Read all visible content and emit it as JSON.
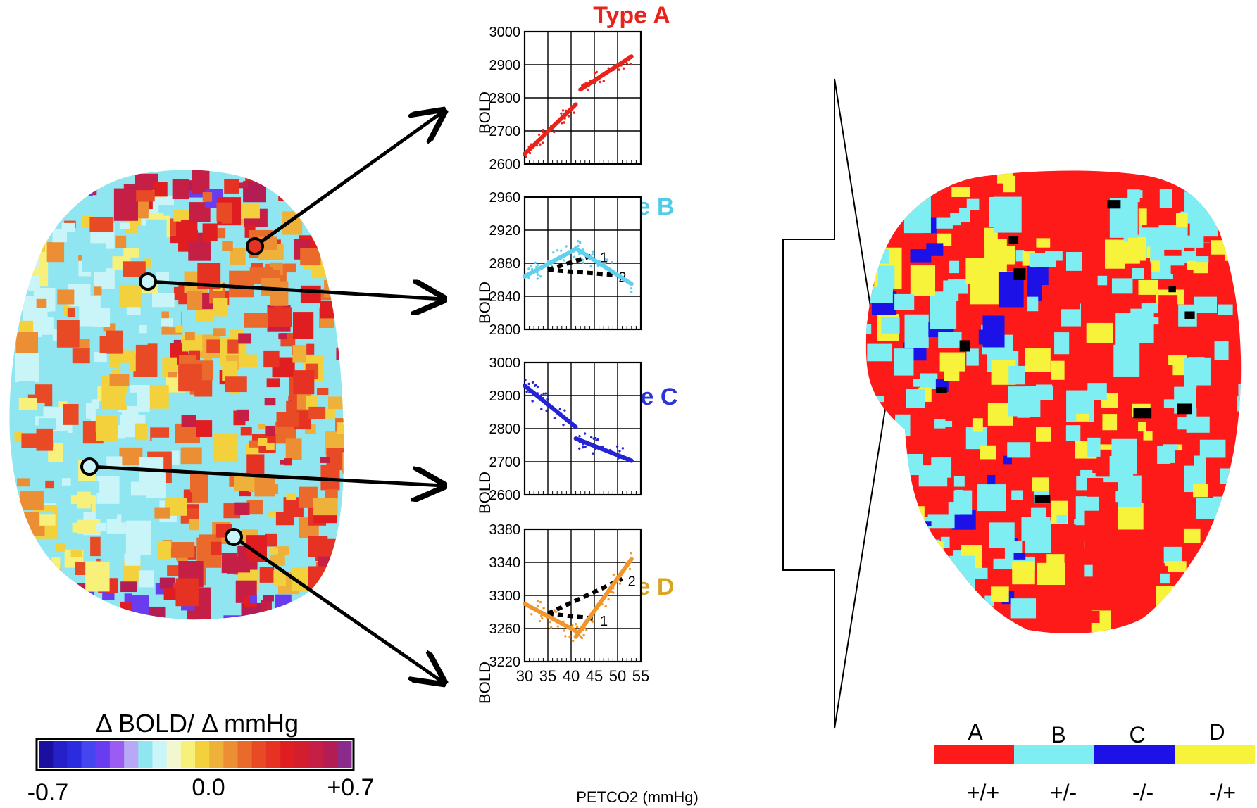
{
  "colorbar": {
    "title": "Δ BOLD/ Δ mmHg",
    "min_label": "-0.7",
    "mid_label": "0.0",
    "max_label": "+0.7",
    "colors": [
      "#1a0f9e",
      "#2620c8",
      "#2b2ce0",
      "#4646f0",
      "#6a3cf0",
      "#9a5cf2",
      "#b9a8f5",
      "#8fe6f0",
      "#c9f4f8",
      "#f3f7cf",
      "#f7f07a",
      "#f2d13c",
      "#eeb23a",
      "#ec8e33",
      "#e96a2a",
      "#e84a25",
      "#e53222",
      "#e01e22",
      "#d21f30",
      "#c61f45",
      "#b41d54",
      "#8a2a8a"
    ]
  },
  "chart_data": [
    {
      "type": "scatter",
      "title": "Type A",
      "title_color": "#e8231c",
      "series_color": "#e8231c",
      "ylabel": "BOLD",
      "xlim": [
        30,
        55
      ],
      "ylim": [
        2600,
        3000
      ],
      "yticks": [
        2600,
        2700,
        2800,
        2900,
        3000
      ],
      "fit_segments": [
        {
          "x": [
            30,
            41
          ],
          "y": [
            2630,
            2780
          ]
        },
        {
          "x": [
            42,
            53
          ],
          "y": [
            2825,
            2925
          ]
        }
      ],
      "points_seed": 11,
      "points_spread": 22
    },
    {
      "type": "scatter",
      "title": "Type B",
      "title_color": "#52cbe8",
      "series_color": "#5fd0ee",
      "ylabel": "BOLD",
      "xlim": [
        30,
        55
      ],
      "ylim": [
        2800,
        2960
      ],
      "yticks": [
        2800,
        2840,
        2880,
        2920,
        2960
      ],
      "fit_segments": [
        {
          "x": [
            30,
            41
          ],
          "y": [
            2864,
            2897
          ]
        },
        {
          "x": [
            41,
            53
          ],
          "y": [
            2898,
            2855
          ]
        }
      ],
      "dashed_segments": [
        {
          "x": [
            35,
            45
          ],
          "y": [
            2872,
            2890
          ],
          "label": "1"
        },
        {
          "x": [
            35,
            49
          ],
          "y": [
            2872,
            2866
          ],
          "label": "2"
        }
      ],
      "points_seed": 23,
      "points_spread": 12
    },
    {
      "type": "scatter",
      "title": "Type C",
      "title_color": "#2a35d8",
      "series_color": "#2424d6",
      "ylabel": "BOLD",
      "xlim": [
        30,
        55
      ],
      "ylim": [
        2600,
        3000
      ],
      "yticks": [
        2600,
        2700,
        2800,
        2900,
        3000
      ],
      "fit_segments": [
        {
          "x": [
            30,
            41
          ],
          "y": [
            2930,
            2805
          ]
        },
        {
          "x": [
            41,
            53
          ],
          "y": [
            2770,
            2703
          ]
        }
      ],
      "points_seed": 37,
      "points_spread": 30
    },
    {
      "type": "scatter",
      "title": "Type D",
      "title_color": "#d9a520",
      "series_color": "#f0962a",
      "ylabel": "BOLD",
      "xlabel": "PETCO2 (mmHg)",
      "xlim": [
        30,
        55
      ],
      "ylim": [
        3220,
        3380
      ],
      "yticks": [
        3220,
        3260,
        3300,
        3340,
        3380
      ],
      "xticks": [
        30,
        35,
        40,
        45,
        50,
        55
      ],
      "fit_segments": [
        {
          "x": [
            30,
            41
          ],
          "y": [
            3290,
            3257
          ]
        },
        {
          "x": [
            41,
            53
          ],
          "y": [
            3250,
            3344
          ]
        }
      ],
      "dashed_segments": [
        {
          "x": [
            35,
            45
          ],
          "y": [
            3278,
            3272
          ],
          "label": "1"
        },
        {
          "x": [
            35,
            51
          ],
          "y": [
            3278,
            3320
          ],
          "label": "2"
        }
      ],
      "points_seed": 51,
      "points_spread": 14
    }
  ],
  "legend": {
    "items": [
      {
        "letter": "A",
        "color": "#ff1a1a",
        "sign": "+/+"
      },
      {
        "letter": "B",
        "color": "#7eeef2",
        "sign": "+/-"
      },
      {
        "letter": "C",
        "color": "#1c12e8",
        "sign": "-/-"
      },
      {
        "letter": "D",
        "color": "#f7f23a",
        "sign": "-/+"
      }
    ]
  }
}
